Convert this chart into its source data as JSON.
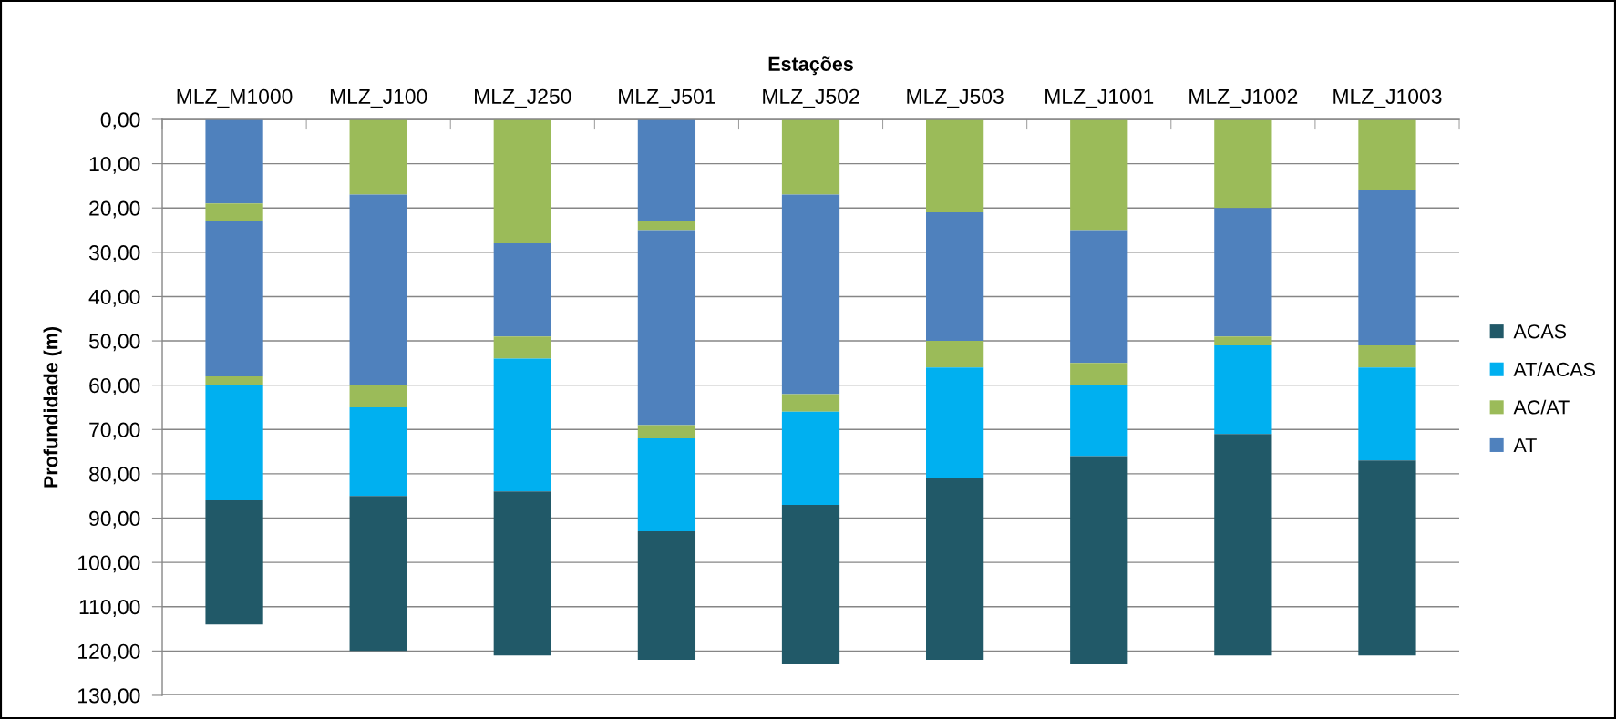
{
  "chart_data": {
    "type": "bar",
    "stacked": true,
    "xlabel": "Estações",
    "ylabel": "Profundidade (m)",
    "categories": [
      "MLZ_M1000",
      "MLZ_J100",
      "MLZ_J250",
      "MLZ_J501",
      "MLZ_J502",
      "MLZ_J503",
      "MLZ_J1001",
      "MLZ_J1002",
      "MLZ_J1003"
    ],
    "series": [
      {
        "color": "#4f81bd",
        "values": [
          19,
          null,
          null,
          23,
          null,
          null,
          null,
          null,
          null
        ]
      },
      {
        "color": "#9bbb59",
        "values": [
          4,
          17,
          28,
          2,
          17,
          21,
          25,
          20,
          16
        ]
      },
      {
        "name": "AT",
        "color": "#4f81bd",
        "values": [
          35,
          43,
          21,
          44,
          45,
          29,
          30,
          29,
          35
        ]
      },
      {
        "name": "AC/AT",
        "color": "#9bbb59",
        "values": [
          2,
          5,
          5,
          3,
          4,
          6,
          5,
          2,
          5
        ]
      },
      {
        "name": "AT/ACAS",
        "color": "#00b0f0",
        "values": [
          26,
          20,
          30,
          21,
          21,
          25,
          16,
          20,
          21
        ]
      },
      {
        "name": "ACAS",
        "color": "#215968",
        "values": [
          28,
          35,
          37,
          29,
          36,
          41,
          47,
          50,
          44
        ]
      }
    ],
    "ylim": [
      130,
      0
    ],
    "yticks": [
      {
        "value": 0,
        "label": "0,00"
      },
      {
        "value": 10,
        "label": "10,00"
      },
      {
        "value": 20,
        "label": "20,00"
      },
      {
        "value": 30,
        "label": "30,00"
      },
      {
        "value": 40,
        "label": "40,00"
      },
      {
        "value": 50,
        "label": "50,00"
      },
      {
        "value": 60,
        "label": "60,00"
      },
      {
        "value": 70,
        "label": "70,00"
      },
      {
        "value": 80,
        "label": "80,00"
      },
      {
        "value": 90,
        "label": "90,00"
      },
      {
        "value": 100,
        "label": "100,00"
      },
      {
        "value": 110,
        "label": "110,00"
      },
      {
        "value": 120,
        "label": "120,00"
      },
      {
        "value": 130,
        "label": "130,00"
      }
    ],
    "grid": "y",
    "legend": "right"
  }
}
